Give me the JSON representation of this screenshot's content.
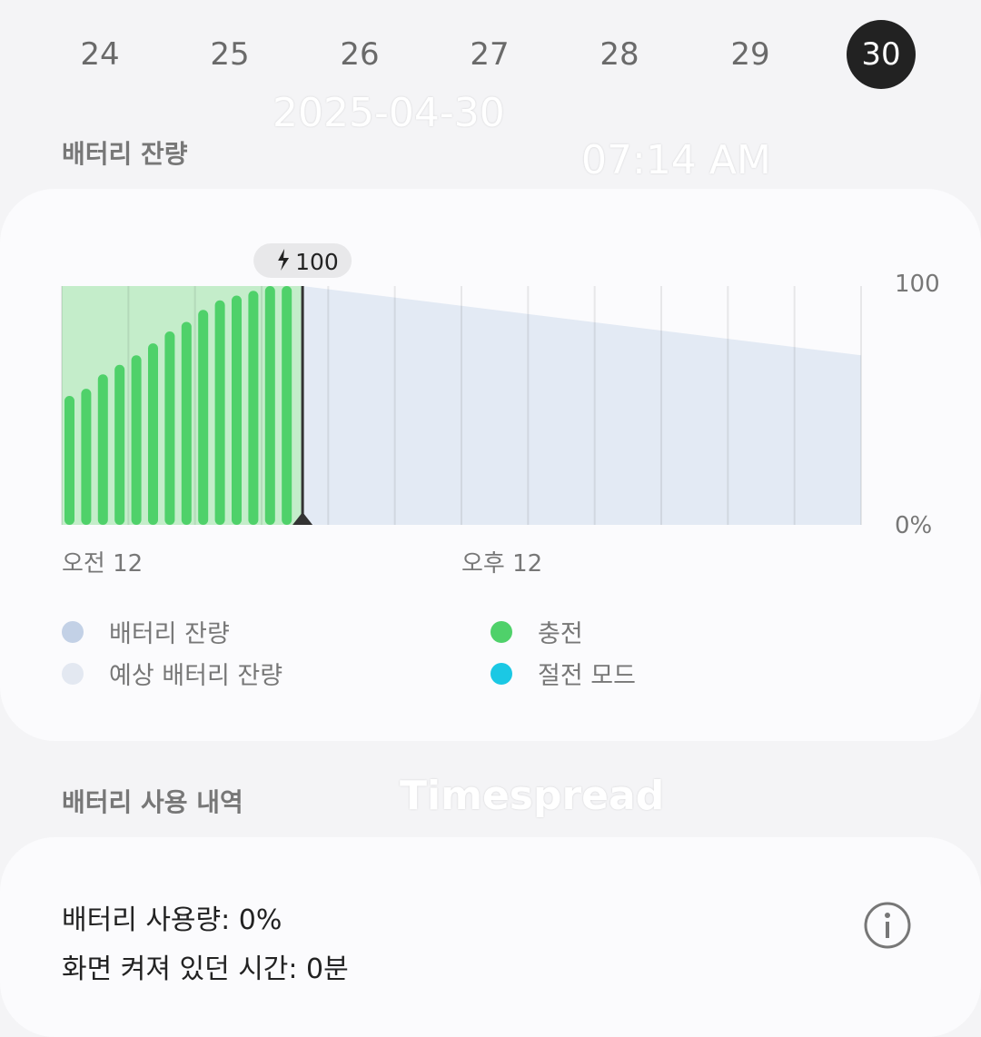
{
  "days": [
    {
      "label": "24"
    },
    {
      "label": "25"
    },
    {
      "label": "26"
    },
    {
      "label": "27"
    },
    {
      "label": "28"
    },
    {
      "label": "29"
    },
    {
      "label": "30",
      "selected": true
    }
  ],
  "battery_level": {
    "title": "배터리 잔량"
  },
  "chart_data": {
    "type": "bar",
    "x_unit": "hour",
    "xlim": [
      0,
      24
    ],
    "ylim": [
      0,
      100
    ],
    "y_ticks": [
      "100",
      "0%"
    ],
    "x_ticks": [
      "오전 12",
      "오후 12"
    ],
    "current_marker": {
      "label": "100",
      "icon": "lightning-bolt-icon",
      "hour": 7.23
    },
    "charging_bars": {
      "hours": [
        0.1,
        0.6,
        1.1,
        1.6,
        2.1,
        2.6,
        3.1,
        3.6,
        4.1,
        4.6,
        5.1,
        5.6,
        6.1,
        6.6
      ],
      "values": [
        54,
        57,
        63,
        67,
        71,
        76,
        81,
        85,
        90,
        94,
        96,
        98,
        100,
        100
      ]
    },
    "projected": {
      "x": [
        7.23,
        24
      ],
      "y": [
        100,
        71
      ]
    },
    "grid": "vertical every 2 hours",
    "colors": {
      "charging": "#4fd16a",
      "charging_area": "#c4edca",
      "projected": "#e3eaf4",
      "current_line": "#333333"
    }
  },
  "legend": [
    {
      "label": "배터리 잔량",
      "color": "#c3d1e6"
    },
    {
      "label": "충전",
      "color": "#4fd16a"
    },
    {
      "label": "예상 배터리 잔량",
      "color": "#e3e8f1"
    },
    {
      "label": "절전 모드",
      "color": "#1bc8e4"
    }
  ],
  "usage_history": {
    "title": "배터리 사용 내역",
    "usage": "배터리 사용량: 0%",
    "screen_on": "화면 켜져 있던 시간: 0분",
    "info_icon": "info-icon"
  },
  "watermark": {
    "date": "2025-04-30",
    "time": "07:14 AM",
    "brand": "Timespread"
  }
}
